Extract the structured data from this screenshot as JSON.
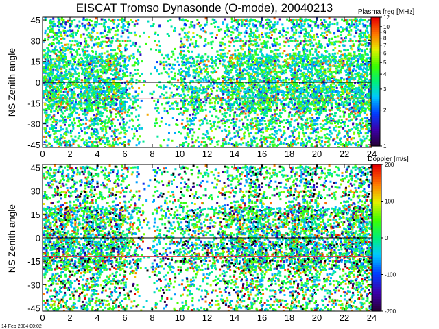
{
  "title": "EISCAT Tromso Dynasonde (O-mode),  20040213",
  "timestamp": "14 Feb 2004 00:02",
  "chart_data": [
    {
      "type": "scatter",
      "panel": "top",
      "ylabel": "NS Zenith angle",
      "xlim": [
        0,
        24
      ],
      "ylim": [
        -47,
        47
      ],
      "x_ticks": [
        "0",
        "2",
        "4",
        "6",
        "8",
        "10",
        "12",
        "14",
        "16",
        "18",
        "20",
        "22",
        "24"
      ],
      "y_ticks": [
        "45",
        "30",
        "15",
        "0",
        "-15",
        "-30",
        "-45"
      ],
      "reference_lines": [
        {
          "y": 0,
          "color": "#000000"
        },
        {
          "y": -12,
          "color": "#d04040"
        }
      ],
      "colorbar": {
        "label": "Plasma freq [MHz]",
        "scale": "log",
        "range": [
          1,
          12
        ],
        "ticks": [
          "12",
          "10",
          "9",
          "8",
          "7",
          "6",
          "5",
          "4",
          "3",
          "2",
          "1"
        ]
      },
      "activity_by_hour": [
        0.9,
        0.85,
        0.55,
        0.95,
        0.8,
        0.75,
        0.3,
        0.05,
        0.15,
        0.2,
        0.55,
        0.45,
        0.35,
        0.6,
        0.7,
        0.9,
        0.95,
        0.5,
        0.85,
        0.85,
        0.8,
        0.6,
        0.8,
        0.9
      ]
    },
    {
      "type": "scatter",
      "panel": "bottom",
      "ylabel": "NS Zenith angle",
      "xlim": [
        0,
        24
      ],
      "ylim": [
        -47,
        47
      ],
      "x_ticks": [
        "0",
        "2",
        "4",
        "6",
        "8",
        "10",
        "12",
        "14",
        "16",
        "18",
        "20",
        "22",
        "24"
      ],
      "y_ticks": [
        "45",
        "30",
        "15",
        "0",
        "-15",
        "-30",
        "-45"
      ],
      "reference_lines": [
        {
          "y": 0,
          "color": "#000000"
        },
        {
          "y": -12,
          "color": "#d04040"
        }
      ],
      "colorbar": {
        "label": "Doppler [m/s]",
        "scale": "linear",
        "range": [
          -200,
          200
        ],
        "ticks": [
          "200",
          "100",
          "0",
          "-100",
          "-200"
        ]
      },
      "activity_by_hour": [
        0.85,
        0.9,
        0.7,
        0.95,
        0.7,
        0.75,
        0.4,
        0.1,
        0.3,
        0.3,
        0.45,
        0.4,
        0.35,
        0.6,
        0.8,
        0.95,
        0.6,
        0.6,
        0.95,
        0.95,
        0.55,
        0.55,
        0.9,
        0.95
      ]
    }
  ]
}
